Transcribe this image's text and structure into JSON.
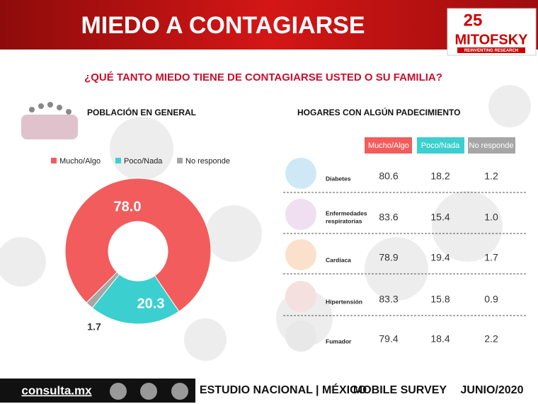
{
  "header": {
    "title": "MIEDO A CONTAGIARSE",
    "logo_number": "25",
    "logo_name": "MITOFSKY",
    "logo_tagline": "REINVENTING RESEARCH"
  },
  "question": "¿QUÉ TANTO MIEDO TIENE DE CONTAGIARSE USTED O SU FAMILIA?",
  "chart_data": {
    "type": "pie",
    "title": "POBLACIÓN EN GENERAL",
    "categories": [
      "Mucho/Algo",
      "Poco/Nada",
      "No responde"
    ],
    "values": [
      78.0,
      20.3,
      1.7
    ],
    "value_labels": [
      "78.0",
      "20.3",
      "1.7"
    ],
    "colors": [
      "#f25c5c",
      "#3ccfcf",
      "#a6a6a6"
    ]
  },
  "table": {
    "title": "HOGARES CON ALGÚN PADECIMIENTO",
    "columns": [
      "Mucho/Algo",
      "Poco/Nada",
      "No responde"
    ],
    "rows": [
      [
        "Diabetes",
        "80.6",
        "18.2",
        "1.2"
      ],
      [
        "Enfermedades respiratorias",
        "83.6",
        "15.4",
        "1.0"
      ],
      [
        "Cardiaca",
        "78.9",
        "19.4",
        "1.7"
      ],
      [
        "Hipertensión",
        "83.3",
        "15.8",
        "0.9"
      ],
      [
        "Fumador",
        "79.4",
        "18.4",
        "2.2"
      ]
    ]
  },
  "footer": {
    "site": "consulta.mx",
    "study": "ESTUDIO NACIONAL | MÉXICO",
    "method": "MOBILE SURVEY",
    "date": "JUNIO/2020"
  }
}
